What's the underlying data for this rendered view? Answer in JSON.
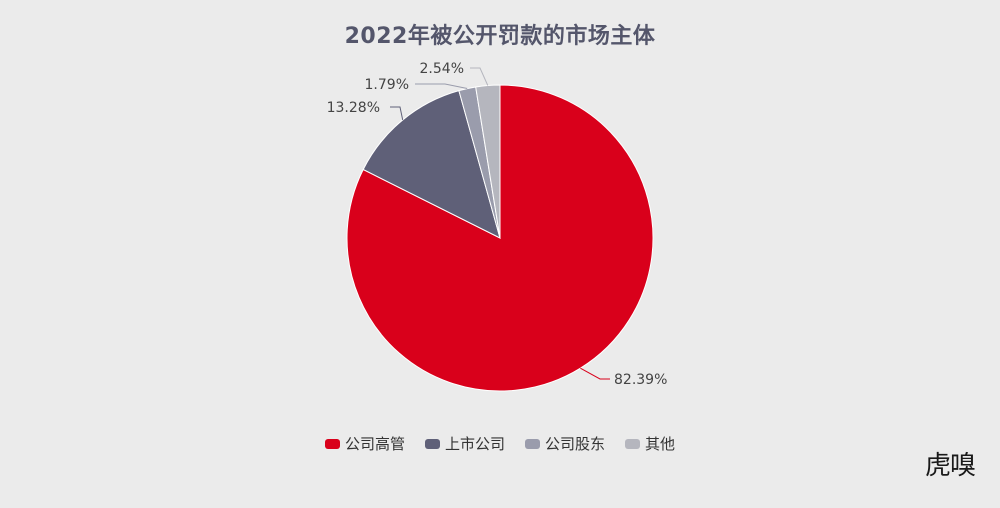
{
  "chart_data": {
    "type": "pie",
    "title": "2022年被公开罚款的市场主体",
    "categories": [
      "公司高管",
      "上市公司",
      "公司股东",
      "其他"
    ],
    "values": [
      82.39,
      13.28,
      1.79,
      2.54
    ],
    "labels": [
      "82.39%",
      "13.28%",
      "1.79%",
      "2.54%"
    ],
    "colors": [
      "#d9001b",
      "#5f6078",
      "#9a9cac",
      "#b5b6be"
    ],
    "legend_position": "bottom"
  },
  "watermark": {
    "text": "虎嗅"
  }
}
